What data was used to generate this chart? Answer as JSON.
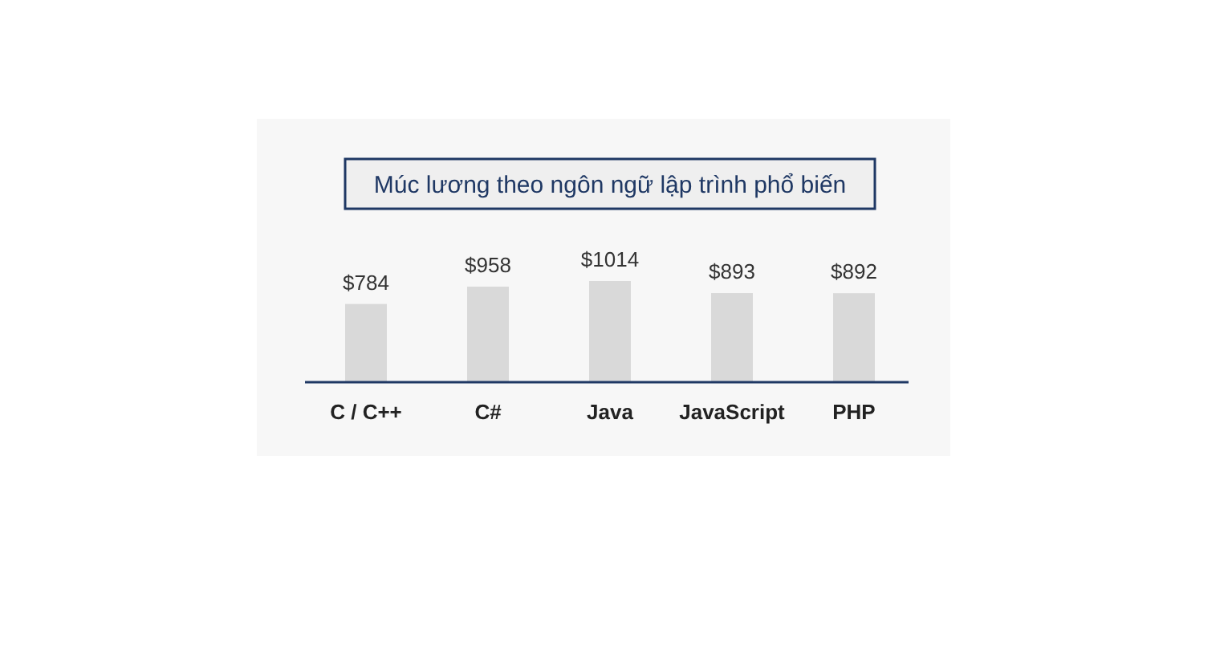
{
  "chart_data": {
    "type": "bar",
    "title": "Múc lương theo ngôn ngữ lập trình phổ biến",
    "categories": [
      "C / C++",
      "C#",
      "Java",
      "JavaScript",
      "PHP"
    ],
    "values": [
      784,
      958,
      1014,
      893,
      892
    ],
    "value_labels": [
      "$784",
      "$958",
      "$1014",
      "$893",
      "$892"
    ],
    "color": "#d9d9d9"
  }
}
